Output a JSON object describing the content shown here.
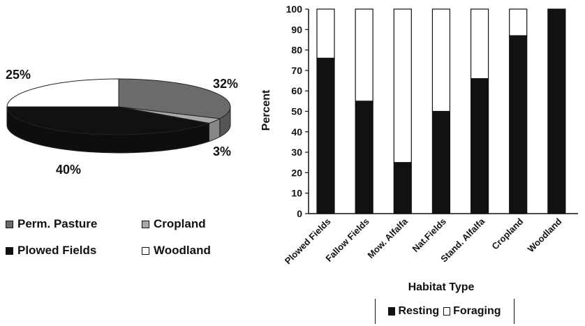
{
  "chart_data": [
    {
      "type": "pie",
      "slices": [
        {
          "label": "Perm. Pasture",
          "value": 32,
          "value_label": "32%",
          "color": "#6b6b6b"
        },
        {
          "label": "Cropland",
          "value": 3,
          "value_label": "3%",
          "color": "#a9a9a9"
        },
        {
          "label": "Plowed Fields",
          "value": 40,
          "value_label": "40%",
          "color": "#111111"
        },
        {
          "label": "Woodland",
          "value": 25,
          "value_label": "25%",
          "color": "#ffffff"
        }
      ],
      "style": "3d",
      "legend_position": "bottom"
    },
    {
      "type": "bar",
      "stacked": true,
      "categories": [
        "Plowed Fields",
        "Fallow Fields",
        "Mow. Alfalfa",
        "Nat.Fields",
        "Stand. Alfalfa",
        "Cropland",
        "Woodland"
      ],
      "series": [
        {
          "name": "Resting",
          "values": [
            76,
            55,
            25,
            50,
            66,
            87,
            100
          ],
          "color": "#111111"
        },
        {
          "name": "Foraging",
          "values": [
            24,
            45,
            75,
            50,
            34,
            13,
            0
          ],
          "color": "#ffffff"
        }
      ],
      "xlabel": "Habitat Type",
      "ylabel": "Percent",
      "ylim": [
        0,
        100
      ],
      "yticks": [
        0,
        10,
        20,
        30,
        40,
        50,
        60,
        70,
        80,
        90,
        100
      ],
      "grid": false,
      "legend_position": "bottom"
    }
  ]
}
